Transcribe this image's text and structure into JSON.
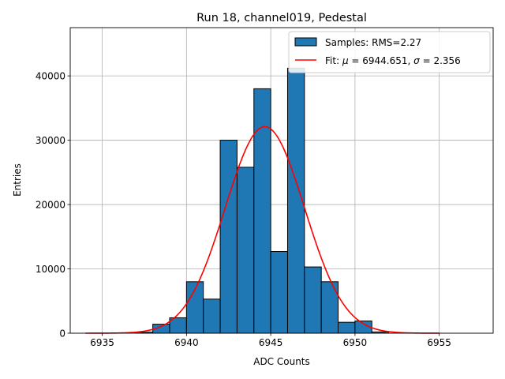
{
  "chart_data": {
    "type": "bar",
    "title": "Run 18, channel019, Pedestal",
    "xlabel": "ADC Counts",
    "ylabel": "Entries",
    "xlim": [
      6933.1,
      6958.2
    ],
    "ylim": [
      0,
      47500
    ],
    "x_ticks": [
      6935,
      6940,
      6945,
      6950,
      6955
    ],
    "y_ticks": [
      0,
      10000,
      20000,
      30000,
      40000
    ],
    "grid": true,
    "legend_position": "top-right",
    "histogram": {
      "name": "Samples: RMS=2.27",
      "color": "#1f77b4",
      "edgecolor": "#000000",
      "bin_width": 1.0,
      "bins": [
        {
          "left": 6937.0,
          "count": 150
        },
        {
          "left": 6938.0,
          "count": 1400
        },
        {
          "left": 6939.0,
          "count": 2400
        },
        {
          "left": 6940.0,
          "count": 8000
        },
        {
          "left": 6941.0,
          "count": 5300
        },
        {
          "left": 6942.0,
          "count": 30000
        },
        {
          "left": 6943.0,
          "count": 25800
        },
        {
          "left": 6944.0,
          "count": 38000
        },
        {
          "left": 6945.0,
          "count": 12700
        },
        {
          "left": 6946.0,
          "count": 41200
        },
        {
          "left": 6947.0,
          "count": 10300
        },
        {
          "left": 6948.0,
          "count": 8000
        },
        {
          "left": 6949.0,
          "count": 1700
        },
        {
          "left": 6950.0,
          "count": 1900
        },
        {
          "left": 6951.0,
          "count": 200
        }
      ]
    },
    "fit": {
      "name": "Fit: μ = 6944.651, σ = 2.356",
      "label_prefix": "Fit: ",
      "mu_symbol": "μ",
      "mu_text": " = 6944.651, ",
      "sigma_symbol": "σ",
      "sigma_text": " = 2.356",
      "type": "gaussian",
      "mu": 6944.651,
      "sigma": 2.356,
      "amplitude": 32100,
      "x_range": [
        6934,
        6955
      ],
      "color": "#ff0000"
    }
  }
}
